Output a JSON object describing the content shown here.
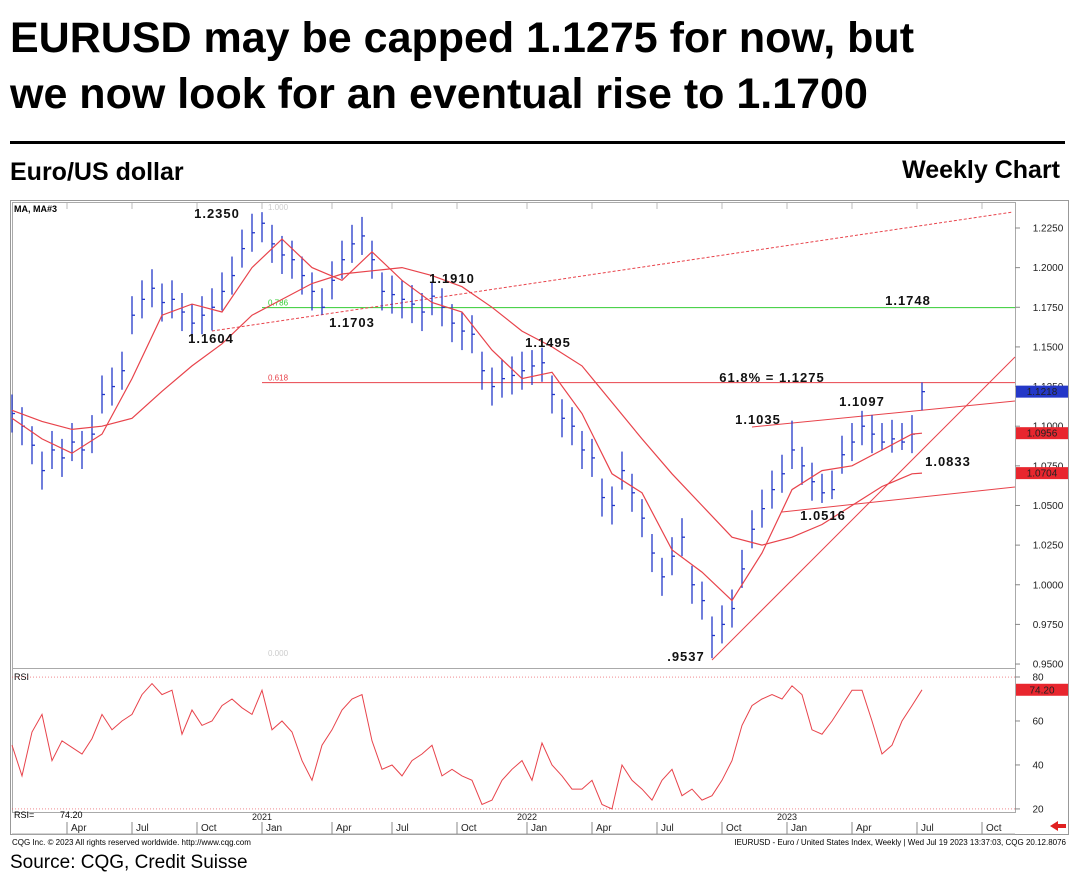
{
  "chart_data": [
    {
      "type": "ohlc",
      "title_lines": [
        "EURUSD may be capped 1.1275 for now, but",
        "we now look for an eventual rise to 1.1700"
      ],
      "subtitle": "Euro/US dollar",
      "subtitle_right": "Weekly Chart",
      "note_left": "CQG Inc. © 2023 All rights reserved worldwide. http://www.cqg.com",
      "note_right": "IEURUSD - Euro / United States Index, Weekly | Wed Jul 19 2023 13:37:03, CQG 20.12.8076",
      "source": "Source: CQG, Credit Suisse",
      "xlim": [
        0,
        200.6
      ],
      "ylim": [
        0.9475,
        1.2414
      ],
      "yticks": [
        {
          "value": 0.95,
          "label": "0.9500"
        },
        {
          "value": 0.975,
          "label": "0.9750"
        },
        {
          "value": 1.0,
          "label": "1.0000"
        },
        {
          "value": 1.025,
          "label": "1.0250"
        },
        {
          "value": 1.05,
          "label": "1.0500"
        },
        {
          "value": 1.075,
          "label": "1.0750"
        },
        {
          "value": 1.1,
          "label": "1.1000"
        },
        {
          "value": 1.125,
          "label": "1.1250"
        },
        {
          "value": 1.15,
          "label": "1.1500"
        },
        {
          "value": 1.175,
          "label": "1.1750"
        },
        {
          "value": 1.2,
          "label": "1.2000"
        },
        {
          "value": 1.225,
          "label": "1.2250"
        }
      ],
      "xticks": [
        {
          "value": 11,
          "label": "Apr"
        },
        {
          "value": 24,
          "label": "Jul"
        },
        {
          "value": 37,
          "label": "Oct"
        },
        {
          "value": 50,
          "label": "Jan"
        },
        {
          "value": 64,
          "label": "Apr"
        },
        {
          "value": 76,
          "label": "Jul"
        },
        {
          "value": 89,
          "label": "Oct"
        },
        {
          "value": 103,
          "label": "Jan"
        },
        {
          "value": 116,
          "label": "Apr"
        },
        {
          "value": 129,
          "label": "Jul"
        },
        {
          "value": 142,
          "label": "Oct"
        },
        {
          "value": 155,
          "label": "Jan"
        },
        {
          "value": 168,
          "label": "Apr"
        },
        {
          "value": 181,
          "label": "Jul"
        },
        {
          "value": 194,
          "label": "Oct"
        }
      ],
      "year_ticks": [
        {
          "value": 50,
          "label": "2021"
        },
        {
          "value": 103,
          "label": "2022"
        },
        {
          "value": 155,
          "label": "2023"
        }
      ],
      "bars": {
        "color": "#2438c8",
        "x": [
          0,
          2,
          4,
          6,
          8,
          10,
          12,
          14,
          16,
          18,
          20,
          22,
          24,
          26,
          28,
          30,
          32,
          34,
          36,
          38,
          40,
          42,
          44,
          46,
          48,
          50,
          52,
          54,
          56,
          58,
          60,
          62,
          64,
          66,
          68,
          70,
          72,
          74,
          76,
          78,
          80,
          82,
          84,
          86,
          88,
          90,
          92,
          94,
          96,
          98,
          100,
          102,
          104,
          106,
          108,
          110,
          112,
          114,
          116,
          118,
          120,
          122,
          124,
          126,
          128,
          130,
          132,
          134,
          136,
          138,
          140,
          142,
          144,
          146,
          148,
          150,
          152,
          154,
          156,
          158,
          160,
          162,
          164,
          166,
          168,
          170,
          172,
          174,
          176,
          178,
          180,
          182
        ],
        "high": [
          1.12,
          1.112,
          1.1,
          1.084,
          1.097,
          1.092,
          1.102,
          1.097,
          1.107,
          1.132,
          1.137,
          1.147,
          1.182,
          1.192,
          1.199,
          1.19,
          1.192,
          1.184,
          1.177,
          1.182,
          1.187,
          1.197,
          1.207,
          1.224,
          1.234,
          1.235,
          1.227,
          1.22,
          1.217,
          1.207,
          1.197,
          1.187,
          1.204,
          1.217,
          1.227,
          1.232,
          1.217,
          1.197,
          1.195,
          1.192,
          1.189,
          1.184,
          1.191,
          1.187,
          1.177,
          1.172,
          1.17,
          1.147,
          1.137,
          1.142,
          1.144,
          1.147,
          1.148,
          1.1495,
          1.132,
          1.117,
          1.112,
          1.097,
          1.092,
          1.067,
          1.062,
          1.084,
          1.07,
          1.054,
          1.032,
          1.017,
          1.03,
          1.042,
          1.012,
          1.002,
          0.98,
          0.987,
          0.997,
          1.022,
          1.047,
          1.06,
          1.072,
          1.082,
          1.1035,
          1.087,
          1.077,
          1.07,
          1.072,
          1.094,
          1.102,
          1.1097,
          1.107,
          1.102,
          1.104,
          1.102,
          1.107,
          1.1276
        ],
        "low": [
          1.096,
          1.088,
          1.076,
          1.06,
          1.073,
          1.068,
          1.078,
          1.073,
          1.083,
          1.108,
          1.113,
          1.123,
          1.158,
          1.168,
          1.175,
          1.166,
          1.168,
          1.16,
          1.153,
          1.158,
          1.1604,
          1.173,
          1.183,
          1.2,
          1.21,
          1.216,
          1.203,
          1.196,
          1.193,
          1.183,
          1.173,
          1.1703,
          1.18,
          1.193,
          1.203,
          1.208,
          1.193,
          1.173,
          1.171,
          1.168,
          1.165,
          1.16,
          1.17,
          1.163,
          1.153,
          1.148,
          1.146,
          1.123,
          1.113,
          1.118,
          1.12,
          1.123,
          1.126,
          1.128,
          1.108,
          1.093,
          1.088,
          1.073,
          1.068,
          1.043,
          1.038,
          1.06,
          1.046,
          1.03,
          1.008,
          0.993,
          1.006,
          1.018,
          0.988,
          0.978,
          0.9537,
          0.963,
          0.973,
          0.998,
          1.023,
          1.036,
          1.048,
          1.058,
          1.073,
          1.063,
          1.053,
          1.0516,
          1.054,
          1.07,
          1.078,
          1.088,
          1.083,
          1.085,
          1.0833,
          1.085,
          1.083,
          1.11
        ],
        "close": [
          1.108,
          1.1,
          1.088,
          1.072,
          1.085,
          1.08,
          1.09,
          1.085,
          1.095,
          1.12,
          1.125,
          1.135,
          1.17,
          1.18,
          1.187,
          1.178,
          1.18,
          1.172,
          1.165,
          1.17,
          1.175,
          1.185,
          1.195,
          1.212,
          1.222,
          1.228,
          1.215,
          1.208,
          1.205,
          1.195,
          1.185,
          1.175,
          1.192,
          1.205,
          1.215,
          1.22,
          1.205,
          1.185,
          1.183,
          1.18,
          1.177,
          1.172,
          1.182,
          1.175,
          1.165,
          1.16,
          1.158,
          1.135,
          1.125,
          1.13,
          1.132,
          1.135,
          1.138,
          1.14,
          1.12,
          1.105,
          1.1,
          1.085,
          1.08,
          1.055,
          1.05,
          1.072,
          1.058,
          1.042,
          1.02,
          1.005,
          1.018,
          1.03,
          1.0,
          0.99,
          0.968,
          0.975,
          0.985,
          1.01,
          1.035,
          1.048,
          1.06,
          1.07,
          1.085,
          1.075,
          1.065,
          1.058,
          1.06,
          1.082,
          1.09,
          1.1,
          1.095,
          1.09,
          1.092,
          1.09,
          1.095,
          1.1218
        ]
      },
      "moving_averages": {
        "legend": "MA,  MA#3",
        "color": "#e8434b",
        "x": [
          0,
          6,
          12,
          18,
          24,
          30,
          36,
          42,
          48,
          54,
          60,
          66,
          72,
          78,
          84,
          90,
          96,
          102,
          108,
          114,
          120,
          126,
          132,
          138,
          144,
          150,
          156,
          162,
          168,
          174,
          180,
          182
        ],
        "series": [
          {
            "values": [
              1.105,
              1.092,
              1.083,
              1.095,
              1.13,
              1.17,
              1.177,
              1.172,
              1.2,
              1.218,
              1.2,
              1.192,
              1.21,
              1.192,
              1.178,
              1.172,
              1.148,
              1.13,
              1.134,
              1.108,
              1.07,
              1.058,
              1.022,
              1.008,
              0.99,
              1.02,
              1.06,
              1.072,
              1.075,
              1.085,
              1.095,
              1.0956
            ]
          },
          {
            "values": [
              1.11,
              1.103,
              1.098,
              1.1,
              1.105,
              1.122,
              1.138,
              1.152,
              1.17,
              1.18,
              1.19,
              1.196,
              1.198,
              1.2,
              1.195,
              1.188,
              1.175,
              1.16,
              1.15,
              1.138,
              1.115,
              1.092,
              1.07,
              1.05,
              1.03,
              1.025,
              1.03,
              1.038,
              1.05,
              1.062,
              1.07,
              1.0704
            ]
          }
        ]
      },
      "fib_levels": [
        {
          "label": "1.000",
          "value": 1.235,
          "line": false,
          "color": "#cccccc"
        },
        {
          "label": "0.786",
          "value": 1.1748,
          "line": true,
          "color": "#33cc33"
        },
        {
          "label": "0.618",
          "value": 1.1275,
          "line": true,
          "color": "#e8434b"
        },
        {
          "label": "0.000",
          "value": 0.9537,
          "line": false,
          "color": "#cccccc"
        }
      ],
      "annotations": [
        "1.2350",
        "1.1604",
        "1.1703",
        "1.1910",
        "1.1495",
        "1.1748",
        "61.8% = 1.1275",
        "1.1035",
        "1.1097",
        "1.0516",
        "1.0833",
        ".9537"
      ]
    },
    {
      "type": "line",
      "title": "RSI",
      "readout": "RSI=",
      "last_label": "74.20",
      "color": "#e8434b",
      "xlim": [
        0,
        200.6
      ],
      "ylim": [
        18.6,
        84.1
      ],
      "yticks": [
        20,
        40,
        60,
        80
      ],
      "guide_lines": [
        20,
        80
      ],
      "x": [
        0,
        2,
        4,
        6,
        8,
        10,
        12,
        14,
        16,
        18,
        20,
        22,
        24,
        26,
        28,
        30,
        32,
        34,
        36,
        38,
        40,
        42,
        44,
        46,
        48,
        50,
        52,
        54,
        56,
        58,
        60,
        62,
        64,
        66,
        68,
        70,
        72,
        74,
        76,
        78,
        80,
        82,
        84,
        86,
        88,
        90,
        92,
        94,
        96,
        98,
        100,
        102,
        104,
        106,
        108,
        110,
        112,
        114,
        116,
        118,
        120,
        122,
        124,
        126,
        128,
        130,
        132,
        134,
        136,
        138,
        140,
        142,
        144,
        146,
        148,
        150,
        152,
        154,
        156,
        158,
        160,
        162,
        164,
        166,
        168,
        170,
        172,
        174,
        176,
        178,
        180,
        182
      ],
      "values": [
        49,
        35,
        55,
        63,
        42,
        51,
        48,
        45,
        52,
        63,
        56,
        60,
        63,
        72,
        77,
        72,
        74,
        54,
        65,
        58,
        60,
        67,
        70,
        66,
        63,
        74,
        56,
        60,
        55,
        42,
        33,
        49,
        56,
        65,
        70,
        72,
        51,
        38,
        40,
        35,
        42,
        45,
        49,
        35,
        38,
        35,
        33,
        22,
        24,
        33,
        38,
        42,
        33,
        50,
        40,
        35,
        29,
        29,
        33,
        22,
        20,
        40,
        33,
        29,
        24,
        33,
        38,
        26,
        29,
        24,
        26,
        33,
        42,
        58,
        67,
        70,
        72,
        70,
        76,
        72,
        56,
        54,
        60,
        67,
        74,
        74,
        60,
        45,
        49,
        60,
        67,
        74.2
      ]
    }
  ]
}
